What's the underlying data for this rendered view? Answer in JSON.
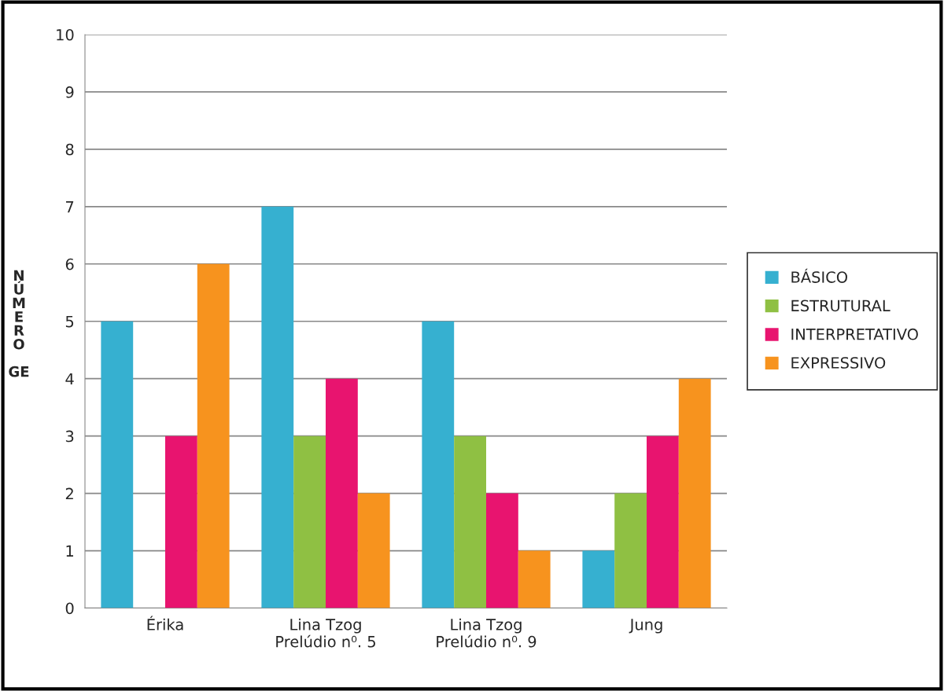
{
  "chart_data": {
    "type": "bar",
    "ylabel": "NÚMERO GE",
    "categories": [
      "Érika",
      "Lina Tzog\nPrelúdio n⁰. 5",
      "Lina Tzog\nPrelúdio n⁰. 9",
      "Jung"
    ],
    "series": [
      {
        "name": "BÁSICO",
        "color": "#36b0d0",
        "values": [
          5,
          7,
          5,
          1
        ]
      },
      {
        "name": "ESTRUTURAL",
        "color": "#8fc043",
        "values": [
          0,
          3,
          3,
          2
        ]
      },
      {
        "name": "INTERPRETATIVO",
        "color": "#e8146f",
        "values": [
          3,
          4,
          2,
          3
        ]
      },
      {
        "name": "EXPRESSIVO",
        "color": "#f7931e",
        "values": [
          6,
          2,
          1,
          4
        ]
      }
    ],
    "ylim": [
      0,
      10
    ],
    "yticks": [
      0,
      1,
      2,
      3,
      4,
      5,
      6,
      7,
      8,
      9,
      10
    ],
    "grid": "y",
    "legend": "right"
  }
}
